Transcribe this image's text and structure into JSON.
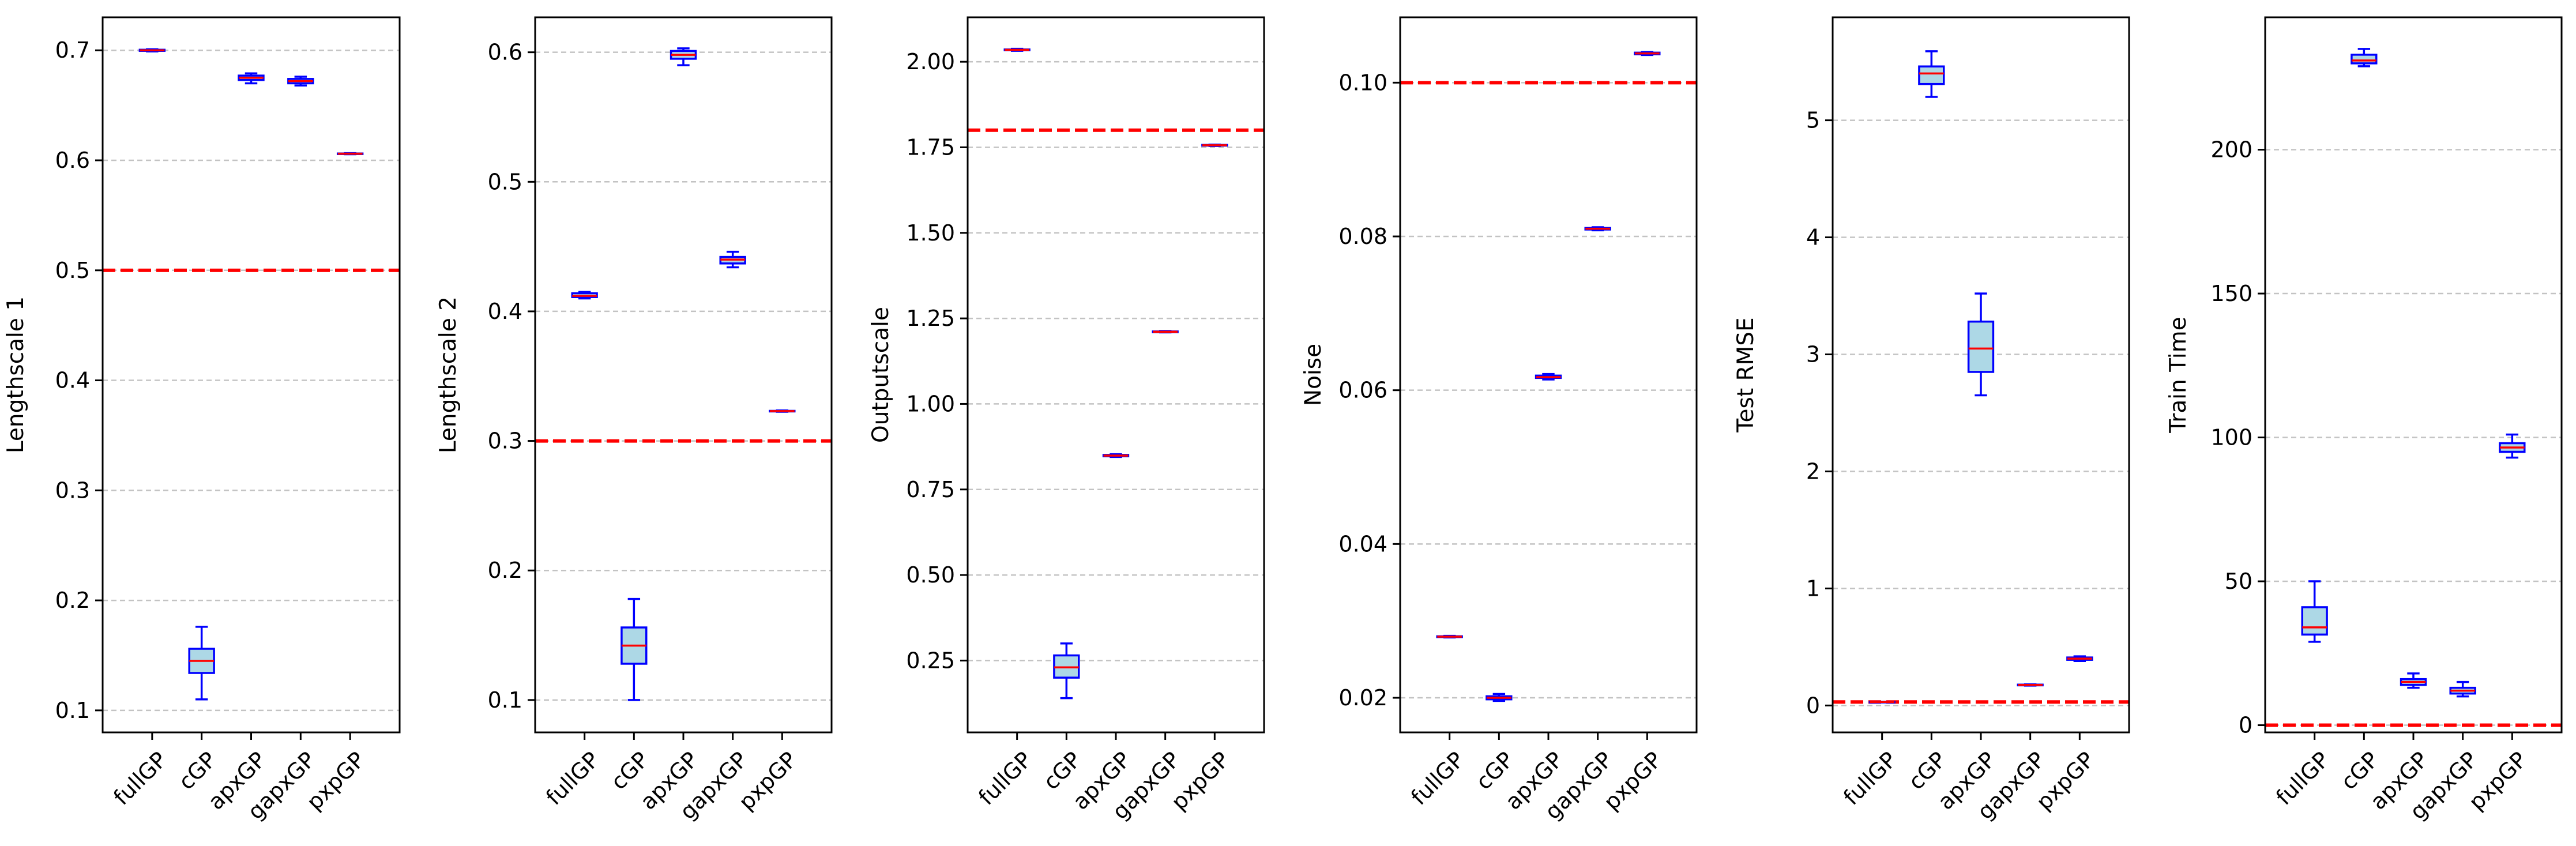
{
  "colors": {
    "box_fill": "#add8e6",
    "box_edge": "#0000ff",
    "median": "#ff0000",
    "reference_line": "#ff0000",
    "grid": "#b0b0b0",
    "axes": "#000000"
  },
  "chart_data": [
    {
      "type": "box",
      "ylabel": "Lengthscale 1",
      "categories": [
        "fullGP",
        "cGP",
        "apxGP",
        "gapxGP",
        "pxpGP"
      ],
      "ylim": [
        0.08,
        0.73
      ],
      "yticks": [
        0.1,
        0.2,
        0.3,
        0.4,
        0.5,
        0.6,
        0.7
      ],
      "ytick_labels": [
        "0.1",
        "0.2",
        "0.3",
        "0.4",
        "0.5",
        "0.6",
        "0.7"
      ],
      "grid": "y-dashed",
      "reference_line": 0.5,
      "boxes": [
        {
          "whislo": 0.699,
          "q1": 0.6995,
          "med": 0.7,
          "q3": 0.7005,
          "whishi": 0.701
        },
        {
          "whislo": 0.11,
          "q1": 0.134,
          "med": 0.145,
          "q3": 0.156,
          "whishi": 0.176
        },
        {
          "whislo": 0.67,
          "q1": 0.673,
          "med": 0.675,
          "q3": 0.677,
          "whishi": 0.679
        },
        {
          "whislo": 0.668,
          "q1": 0.67,
          "med": 0.672,
          "q3": 0.674,
          "whishi": 0.676
        },
        {
          "whislo": 0.6055,
          "q1": 0.6058,
          "med": 0.606,
          "q3": 0.6062,
          "whishi": 0.6065
        }
      ]
    },
    {
      "type": "box",
      "ylabel": "Lengthscale 2",
      "categories": [
        "fullGP",
        "cGP",
        "apxGP",
        "gapxGP",
        "pxpGP"
      ],
      "ylim": [
        0.075,
        0.627
      ],
      "yticks": [
        0.1,
        0.2,
        0.3,
        0.4,
        0.5,
        0.6
      ],
      "ytick_labels": [
        "0.1",
        "0.2",
        "0.3",
        "0.4",
        "0.5",
        "0.6"
      ],
      "grid": "y-dashed",
      "reference_line": 0.3,
      "boxes": [
        {
          "whislo": 0.41,
          "q1": 0.411,
          "med": 0.412,
          "q3": 0.414,
          "whishi": 0.415
        },
        {
          "whislo": 0.1,
          "q1": 0.128,
          "med": 0.142,
          "q3": 0.156,
          "whishi": 0.178
        },
        {
          "whislo": 0.59,
          "q1": 0.595,
          "med": 0.598,
          "q3": 0.601,
          "whishi": 0.603
        },
        {
          "whislo": 0.434,
          "q1": 0.437,
          "med": 0.44,
          "q3": 0.442,
          "whishi": 0.446
        },
        {
          "whislo": 0.3225,
          "q1": 0.3228,
          "med": 0.323,
          "q3": 0.3232,
          "whishi": 0.3235
        }
      ]
    },
    {
      "type": "box",
      "ylabel": "Outputscale",
      "categories": [
        "fullGP",
        "cGP",
        "apxGP",
        "gapxGP",
        "pxpGP"
      ],
      "ylim": [
        0.04,
        2.13
      ],
      "yticks": [
        0.25,
        0.5,
        0.75,
        1.0,
        1.25,
        1.5,
        1.75,
        2.0
      ],
      "ytick_labels": [
        "0.25",
        "0.50",
        "0.75",
        "1.00",
        "1.25",
        "1.50",
        "1.75",
        "2.00"
      ],
      "grid": "y-dashed",
      "reference_line": 1.8,
      "boxes": [
        {
          "whislo": 2.032,
          "q1": 2.034,
          "med": 2.035,
          "q3": 2.036,
          "whishi": 2.038
        },
        {
          "whislo": 0.14,
          "q1": 0.2,
          "med": 0.23,
          "q3": 0.265,
          "whishi": 0.3
        },
        {
          "whislo": 0.845,
          "q1": 0.847,
          "med": 0.849,
          "q3": 0.851,
          "whishi": 0.853
        },
        {
          "whislo": 1.209,
          "q1": 1.21,
          "med": 1.211,
          "q3": 1.212,
          "whishi": 1.213
        },
        {
          "whislo": 1.754,
          "q1": 1.755,
          "med": 1.756,
          "q3": 1.757,
          "whishi": 1.758
        }
      ]
    },
    {
      "type": "box",
      "ylabel": "Noise",
      "categories": [
        "fullGP",
        "cGP",
        "apxGP",
        "gapxGP",
        "pxpGP"
      ],
      "ylim": [
        0.0155,
        0.1085
      ],
      "yticks": [
        0.02,
        0.04,
        0.06,
        0.08,
        0.1
      ],
      "ytick_labels": [
        "0.02",
        "0.04",
        "0.06",
        "0.08",
        "0.10"
      ],
      "grid": "y-dashed",
      "reference_line": 0.1,
      "boxes": [
        {
          "whislo": 0.02785,
          "q1": 0.0279,
          "med": 0.02795,
          "q3": 0.028,
          "whishi": 0.02805
        },
        {
          "whislo": 0.0196,
          "q1": 0.0198,
          "med": 0.02,
          "q3": 0.0202,
          "whishi": 0.0205
        },
        {
          "whislo": 0.0614,
          "q1": 0.0616,
          "med": 0.0617,
          "q3": 0.0619,
          "whishi": 0.0621
        },
        {
          "whislo": 0.0808,
          "q1": 0.0809,
          "med": 0.081,
          "q3": 0.0811,
          "whishi": 0.0812
        },
        {
          "whislo": 0.1036,
          "q1": 0.1037,
          "med": 0.1038,
          "q3": 0.1039,
          "whishi": 0.104
        }
      ]
    },
    {
      "type": "box",
      "ylabel": "Test RMSE",
      "categories": [
        "fullGP",
        "cGP",
        "apxGP",
        "gapxGP",
        "pxpGP"
      ],
      "ylim": [
        -0.23,
        5.88
      ],
      "yticks": [
        0,
        1,
        2,
        3,
        4,
        5
      ],
      "ytick_labels": [
        "0",
        "1",
        "2",
        "3",
        "4",
        "5"
      ],
      "grid": "y-dashed",
      "reference_line": 0.03,
      "boxes": [
        {
          "whislo": 0.028,
          "q1": 0.029,
          "med": 0.03,
          "q3": 0.031,
          "whishi": 0.032
        },
        {
          "whislo": 5.2,
          "q1": 5.31,
          "med": 5.4,
          "q3": 5.46,
          "whishi": 5.59
        },
        {
          "whislo": 2.65,
          "q1": 2.85,
          "med": 3.05,
          "q3": 3.28,
          "whishi": 3.52
        },
        {
          "whislo": 0.17,
          "q1": 0.172,
          "med": 0.175,
          "q3": 0.178,
          "whishi": 0.18
        },
        {
          "whislo": 0.38,
          "q1": 0.39,
          "med": 0.4,
          "q3": 0.41,
          "whishi": 0.42
        }
      ]
    },
    {
      "type": "box",
      "ylabel": "Train Time",
      "categories": [
        "fullGP",
        "cGP",
        "apxGP",
        "gapxGP",
        "pxpGP"
      ],
      "ylim": [
        -2.5,
        246
      ],
      "yticks": [
        0,
        50,
        100,
        150,
        200
      ],
      "ytick_labels": [
        "0",
        "50",
        "100",
        "150",
        "200"
      ],
      "grid": "y-dashed",
      "reference_line": 0,
      "boxes": [
        {
          "whislo": 29,
          "q1": 31.5,
          "med": 34,
          "q3": 41,
          "whishi": 50
        },
        {
          "whislo": 229,
          "q1": 230,
          "med": 231,
          "q3": 233,
          "whishi": 235
        },
        {
          "whislo": 13,
          "q1": 14,
          "med": 15,
          "q3": 16,
          "whishi": 18
        },
        {
          "whislo": 10,
          "q1": 11,
          "med": 12,
          "q3": 13,
          "whishi": 15
        },
        {
          "whislo": 93,
          "q1": 95,
          "med": 96.5,
          "q3": 98,
          "whishi": 101
        }
      ]
    }
  ]
}
